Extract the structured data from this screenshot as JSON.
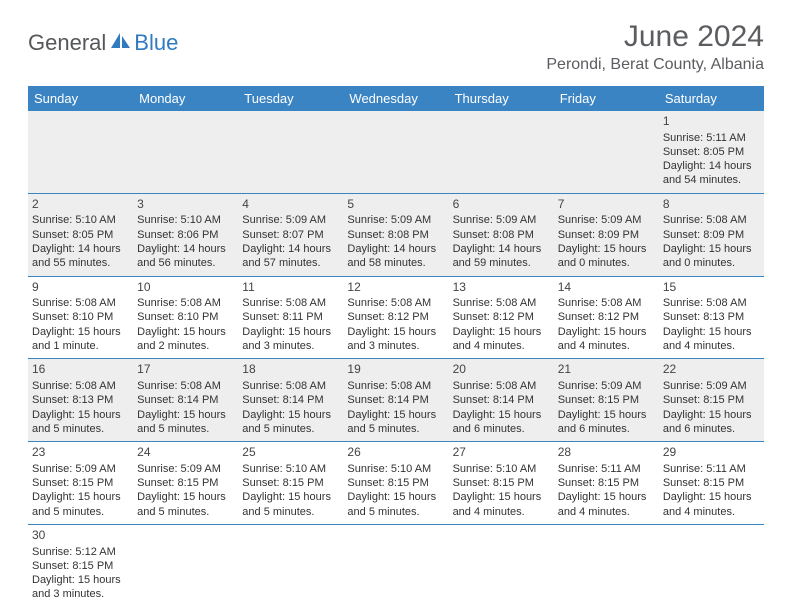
{
  "logo": {
    "general": "General",
    "blue": "Blue"
  },
  "title": "June 2024",
  "location": "Perondi, Berat County, Albania",
  "colors": {
    "header_bg": "#3b84c4",
    "header_text": "#ffffff",
    "gray_bg": "#eeeeee",
    "logo_gray": "#55575a",
    "logo_blue": "#2f7ac0",
    "title_color": "#5b5d60"
  },
  "day_names": [
    "Sunday",
    "Monday",
    "Tuesday",
    "Wednesday",
    "Thursday",
    "Friday",
    "Saturday"
  ],
  "weeks": [
    [
      null,
      null,
      null,
      null,
      null,
      null,
      {
        "n": "1",
        "sr": "Sunrise: 5:11 AM",
        "ss": "Sunset: 8:05 PM",
        "d1": "Daylight: 14 hours",
        "d2": "and 54 minutes."
      }
    ],
    [
      {
        "n": "2",
        "sr": "Sunrise: 5:10 AM",
        "ss": "Sunset: 8:05 PM",
        "d1": "Daylight: 14 hours",
        "d2": "and 55 minutes."
      },
      {
        "n": "3",
        "sr": "Sunrise: 5:10 AM",
        "ss": "Sunset: 8:06 PM",
        "d1": "Daylight: 14 hours",
        "d2": "and 56 minutes."
      },
      {
        "n": "4",
        "sr": "Sunrise: 5:09 AM",
        "ss": "Sunset: 8:07 PM",
        "d1": "Daylight: 14 hours",
        "d2": "and 57 minutes."
      },
      {
        "n": "5",
        "sr": "Sunrise: 5:09 AM",
        "ss": "Sunset: 8:08 PM",
        "d1": "Daylight: 14 hours",
        "d2": "and 58 minutes."
      },
      {
        "n": "6",
        "sr": "Sunrise: 5:09 AM",
        "ss": "Sunset: 8:08 PM",
        "d1": "Daylight: 14 hours",
        "d2": "and 59 minutes."
      },
      {
        "n": "7",
        "sr": "Sunrise: 5:09 AM",
        "ss": "Sunset: 8:09 PM",
        "d1": "Daylight: 15 hours",
        "d2": "and 0 minutes."
      },
      {
        "n": "8",
        "sr": "Sunrise: 5:08 AM",
        "ss": "Sunset: 8:09 PM",
        "d1": "Daylight: 15 hours",
        "d2": "and 0 minutes."
      }
    ],
    [
      {
        "n": "9",
        "sr": "Sunrise: 5:08 AM",
        "ss": "Sunset: 8:10 PM",
        "d1": "Daylight: 15 hours",
        "d2": "and 1 minute."
      },
      {
        "n": "10",
        "sr": "Sunrise: 5:08 AM",
        "ss": "Sunset: 8:10 PM",
        "d1": "Daylight: 15 hours",
        "d2": "and 2 minutes."
      },
      {
        "n": "11",
        "sr": "Sunrise: 5:08 AM",
        "ss": "Sunset: 8:11 PM",
        "d1": "Daylight: 15 hours",
        "d2": "and 3 minutes."
      },
      {
        "n": "12",
        "sr": "Sunrise: 5:08 AM",
        "ss": "Sunset: 8:12 PM",
        "d1": "Daylight: 15 hours",
        "d2": "and 3 minutes."
      },
      {
        "n": "13",
        "sr": "Sunrise: 5:08 AM",
        "ss": "Sunset: 8:12 PM",
        "d1": "Daylight: 15 hours",
        "d2": "and 4 minutes."
      },
      {
        "n": "14",
        "sr": "Sunrise: 5:08 AM",
        "ss": "Sunset: 8:12 PM",
        "d1": "Daylight: 15 hours",
        "d2": "and 4 minutes."
      },
      {
        "n": "15",
        "sr": "Sunrise: 5:08 AM",
        "ss": "Sunset: 8:13 PM",
        "d1": "Daylight: 15 hours",
        "d2": "and 4 minutes."
      }
    ],
    [
      {
        "n": "16",
        "sr": "Sunrise: 5:08 AM",
        "ss": "Sunset: 8:13 PM",
        "d1": "Daylight: 15 hours",
        "d2": "and 5 minutes."
      },
      {
        "n": "17",
        "sr": "Sunrise: 5:08 AM",
        "ss": "Sunset: 8:14 PM",
        "d1": "Daylight: 15 hours",
        "d2": "and 5 minutes."
      },
      {
        "n": "18",
        "sr": "Sunrise: 5:08 AM",
        "ss": "Sunset: 8:14 PM",
        "d1": "Daylight: 15 hours",
        "d2": "and 5 minutes."
      },
      {
        "n": "19",
        "sr": "Sunrise: 5:08 AM",
        "ss": "Sunset: 8:14 PM",
        "d1": "Daylight: 15 hours",
        "d2": "and 5 minutes."
      },
      {
        "n": "20",
        "sr": "Sunrise: 5:08 AM",
        "ss": "Sunset: 8:14 PM",
        "d1": "Daylight: 15 hours",
        "d2": "and 6 minutes."
      },
      {
        "n": "21",
        "sr": "Sunrise: 5:09 AM",
        "ss": "Sunset: 8:15 PM",
        "d1": "Daylight: 15 hours",
        "d2": "and 6 minutes."
      },
      {
        "n": "22",
        "sr": "Sunrise: 5:09 AM",
        "ss": "Sunset: 8:15 PM",
        "d1": "Daylight: 15 hours",
        "d2": "and 6 minutes."
      }
    ],
    [
      {
        "n": "23",
        "sr": "Sunrise: 5:09 AM",
        "ss": "Sunset: 8:15 PM",
        "d1": "Daylight: 15 hours",
        "d2": "and 5 minutes."
      },
      {
        "n": "24",
        "sr": "Sunrise: 5:09 AM",
        "ss": "Sunset: 8:15 PM",
        "d1": "Daylight: 15 hours",
        "d2": "and 5 minutes."
      },
      {
        "n": "25",
        "sr": "Sunrise: 5:10 AM",
        "ss": "Sunset: 8:15 PM",
        "d1": "Daylight: 15 hours",
        "d2": "and 5 minutes."
      },
      {
        "n": "26",
        "sr": "Sunrise: 5:10 AM",
        "ss": "Sunset: 8:15 PM",
        "d1": "Daylight: 15 hours",
        "d2": "and 5 minutes."
      },
      {
        "n": "27",
        "sr": "Sunrise: 5:10 AM",
        "ss": "Sunset: 8:15 PM",
        "d1": "Daylight: 15 hours",
        "d2": "and 4 minutes."
      },
      {
        "n": "28",
        "sr": "Sunrise: 5:11 AM",
        "ss": "Sunset: 8:15 PM",
        "d1": "Daylight: 15 hours",
        "d2": "and 4 minutes."
      },
      {
        "n": "29",
        "sr": "Sunrise: 5:11 AM",
        "ss": "Sunset: 8:15 PM",
        "d1": "Daylight: 15 hours",
        "d2": "and 4 minutes."
      }
    ],
    [
      {
        "n": "30",
        "sr": "Sunrise: 5:12 AM",
        "ss": "Sunset: 8:15 PM",
        "d1": "Daylight: 15 hours",
        "d2": "and 3 minutes."
      },
      null,
      null,
      null,
      null,
      null,
      null
    ]
  ]
}
